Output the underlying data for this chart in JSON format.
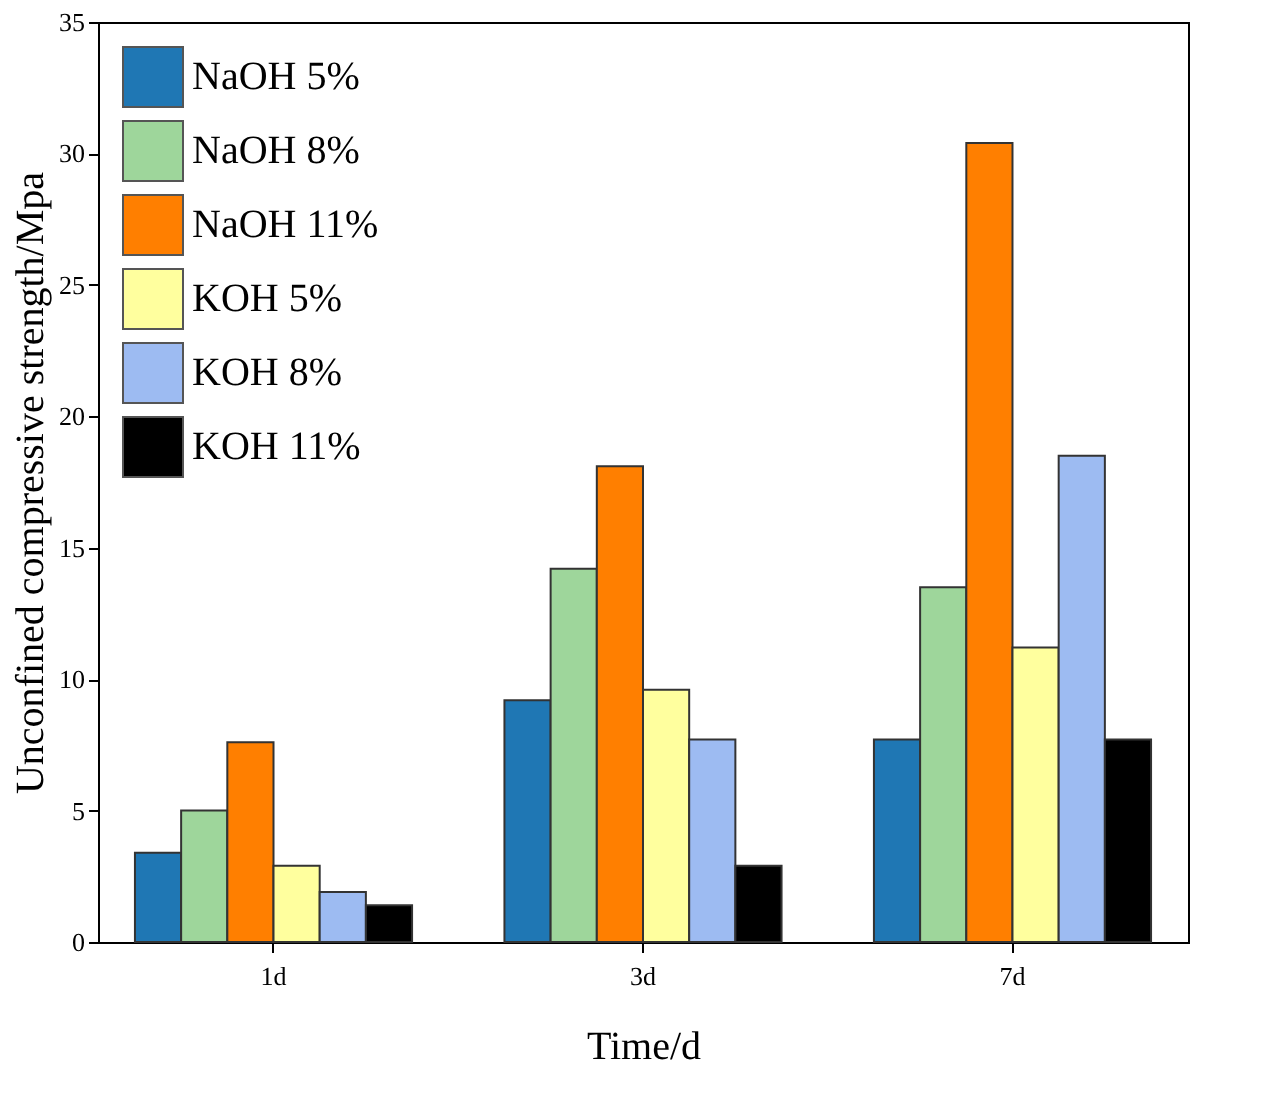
{
  "chart_data": {
    "type": "bar",
    "xlabel": "Time/d",
    "ylabel": "Unconfined compressive strength/Mpa",
    "categories": [
      "1d",
      "3d",
      "7d"
    ],
    "series": [
      {
        "name": "NaOH 5%",
        "color": "#1f77b4",
        "values": [
          3.4,
          9.2,
          7.7
        ]
      },
      {
        "name": "NaOH 8%",
        "color": "#9ed69b",
        "values": [
          5.0,
          14.2,
          13.5
        ]
      },
      {
        "name": "NaOH 11%",
        "color": "#ff7f00",
        "values": [
          7.6,
          18.1,
          30.4
        ]
      },
      {
        "name": "KOH 5%",
        "color": "#ffff9e",
        "values": [
          2.9,
          9.6,
          11.2
        ]
      },
      {
        "name": "KOH 8%",
        "color": "#9dbbf2",
        "values": [
          1.9,
          7.7,
          18.5
        ]
      },
      {
        "name": "KOH 11%",
        "color": "#000000",
        "values": [
          1.4,
          2.9,
          7.7
        ]
      }
    ],
    "ylim": [
      0,
      35
    ],
    "yticks": [
      0,
      5,
      10,
      15,
      20,
      25,
      30,
      35
    ],
    "grid": false,
    "legend": "top left"
  }
}
